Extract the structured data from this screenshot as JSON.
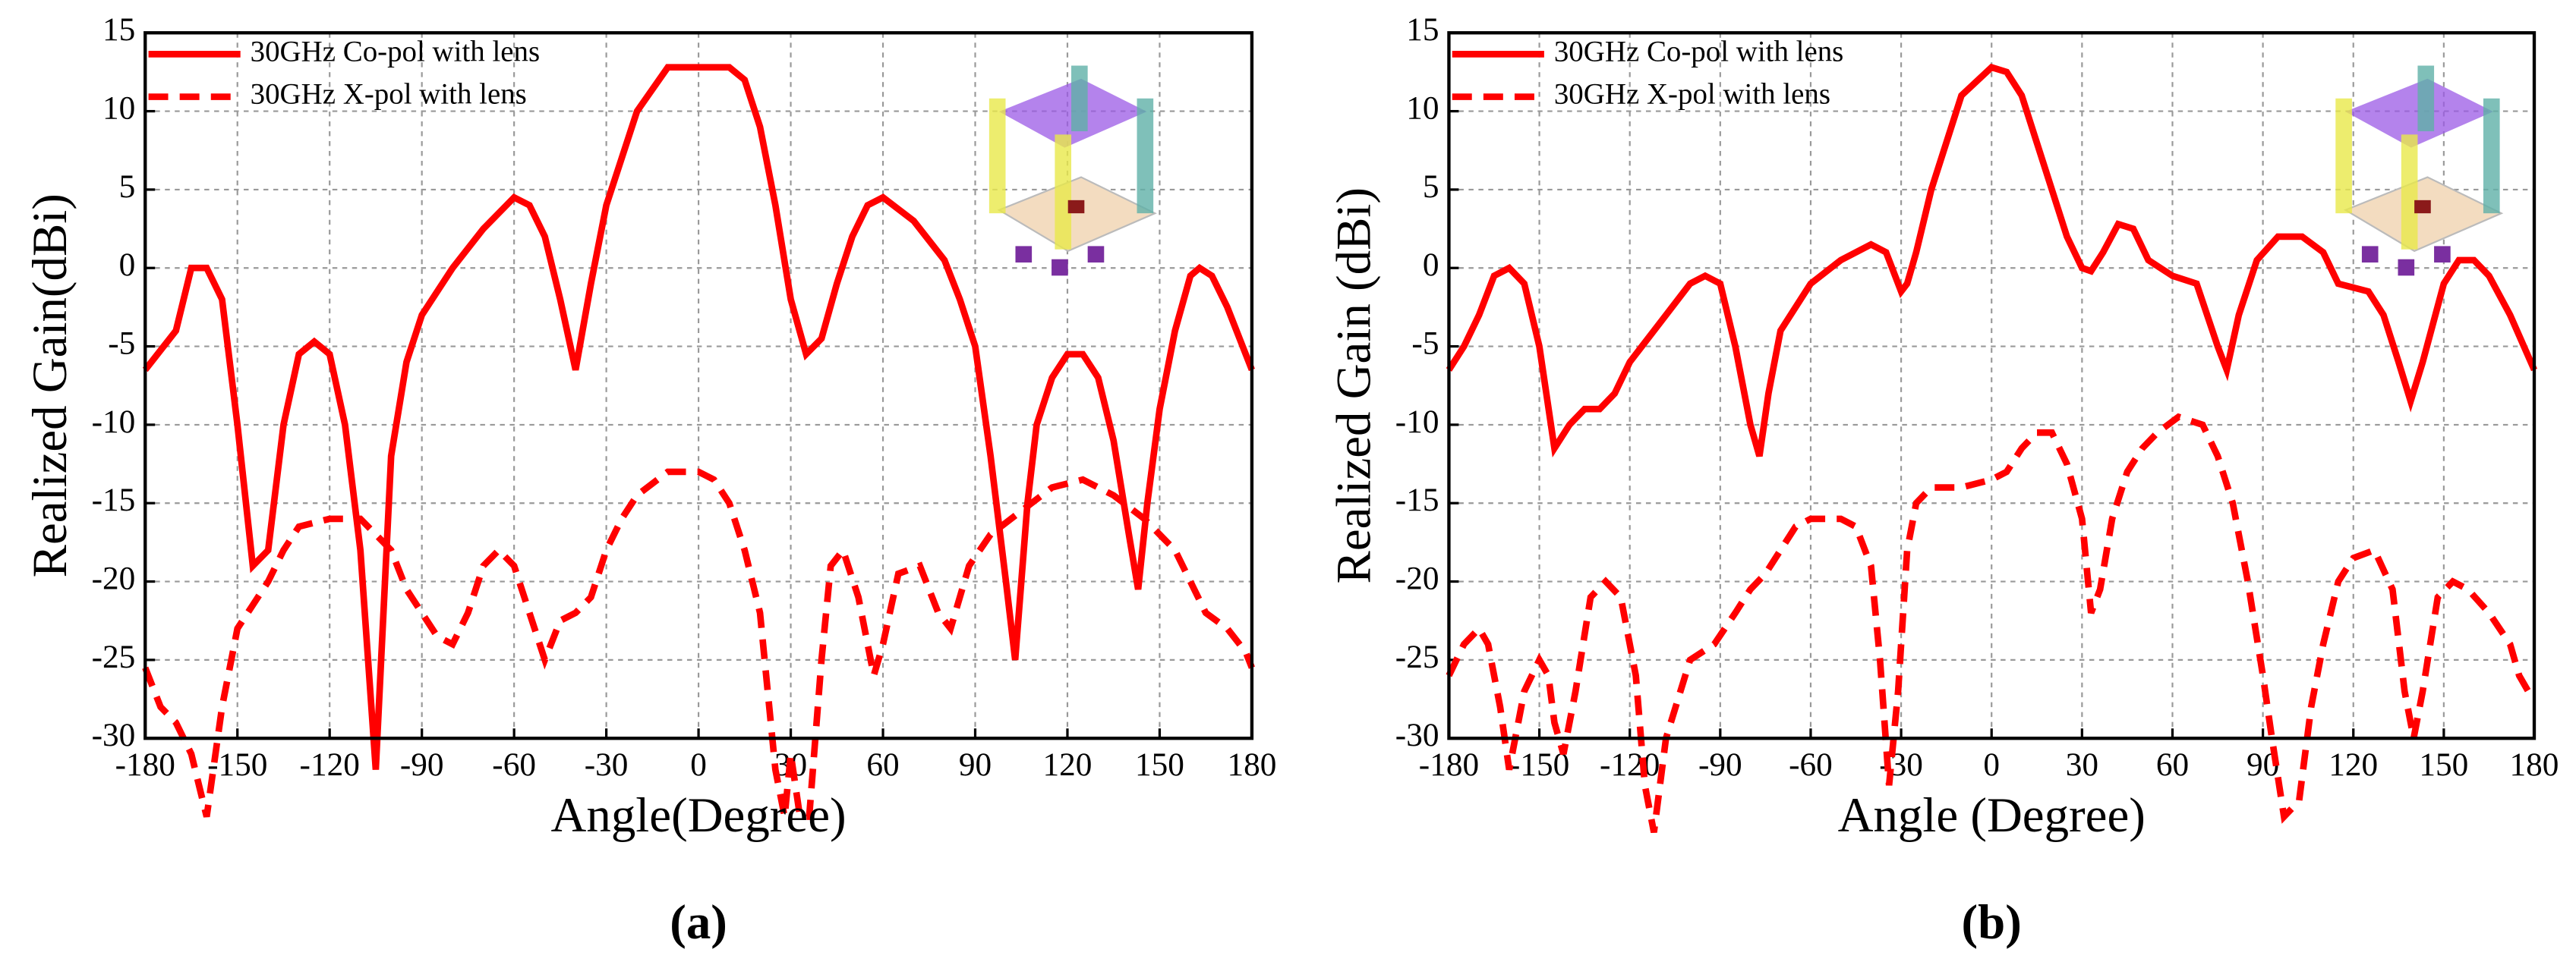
{
  "chart_data": [
    {
      "type": "line",
      "label": "(a)",
      "xlabel": "Angle(Degree)",
      "ylabel": "Realized Gain(dBi)",
      "xlim": [
        -180,
        180
      ],
      "ylim": [
        -30,
        15
      ],
      "xticks": [
        -180,
        -150,
        -120,
        -90,
        -60,
        -30,
        0,
        30,
        60,
        90,
        120,
        150,
        180
      ],
      "yticks": [
        -30,
        -25,
        -20,
        -15,
        -10,
        -5,
        0,
        5,
        10,
        15
      ],
      "grid": true,
      "legend": "upper left",
      "series": [
        {
          "name": "30GHz Co-pol with lens",
          "color": "#ff0000",
          "style": "solid",
          "x": [
            -180,
            -170,
            -165,
            -160,
            -155,
            -150,
            -145,
            -140,
            -135,
            -130,
            -125,
            -120,
            -115,
            -110,
            -105,
            -100,
            -95,
            -90,
            -80,
            -70,
            -60,
            -55,
            -50,
            -45,
            -40,
            -35,
            -30,
            -20,
            -10,
            0,
            10,
            15,
            20,
            25,
            30,
            35,
            40,
            45,
            50,
            55,
            60,
            70,
            80,
            85,
            90,
            95,
            100,
            103,
            107,
            110,
            115,
            120,
            125,
            130,
            135,
            140,
            143,
            146,
            150,
            155,
            160,
            163,
            167,
            172,
            180
          ],
          "values": [
            -6.5,
            -4,
            0,
            0,
            -2,
            -10,
            -19,
            -18,
            -10,
            -5.5,
            -4.7,
            -5.5,
            -10,
            -18,
            -32,
            -12,
            -6,
            -3,
            0,
            2.5,
            4.5,
            4,
            2,
            -2,
            -6.5,
            -1,
            4,
            10,
            12.8,
            12.8,
            12.8,
            12,
            9,
            4,
            -2,
            -5.5,
            -4.5,
            -1,
            2,
            4,
            4.5,
            3,
            0.5,
            -2,
            -5,
            -12,
            -20,
            -25,
            -15,
            -10,
            -7,
            -5.5,
            -5.5,
            -7,
            -11,
            -17,
            -20.5,
            -15,
            -9,
            -4,
            -0.5,
            0,
            -0.5,
            -2.5,
            -6.5
          ]
        },
        {
          "name": "30GHz X-pol with lens",
          "color": "#ff0000",
          "style": "dashed",
          "x": [
            -180,
            -175,
            -170,
            -165,
            -160,
            -155,
            -150,
            -145,
            -140,
            -135,
            -130,
            -120,
            -110,
            -100,
            -95,
            -90,
            -85,
            -80,
            -75,
            -70,
            -65,
            -60,
            -55,
            -50,
            -45,
            -40,
            -35,
            -30,
            -25,
            -20,
            -10,
            0,
            5,
            10,
            15,
            20,
            25,
            28,
            30,
            33,
            36,
            40,
            43,
            47,
            52,
            57,
            60,
            65,
            72,
            78,
            82,
            88,
            95,
            105,
            115,
            125,
            135,
            145,
            150,
            155,
            160,
            165,
            172,
            178,
            180
          ],
          "values": [
            -25.5,
            -28,
            -29,
            -31,
            -35,
            -28,
            -23,
            -21.5,
            -20,
            -18,
            -16.5,
            -16,
            -16,
            -18,
            -20.5,
            -22,
            -23.5,
            -24,
            -22,
            -19,
            -18,
            -19,
            -22,
            -25,
            -22.5,
            -22,
            -21,
            -18,
            -16,
            -14.5,
            -13,
            -13,
            -13.5,
            -15,
            -18,
            -22,
            -32,
            -35,
            -31,
            -35,
            -35,
            -25,
            -19,
            -18,
            -21,
            -26,
            -24,
            -19.5,
            -19,
            -22,
            -23,
            -19,
            -17,
            -15.5,
            -14,
            -13.5,
            -14.5,
            -16,
            -17,
            -18,
            -20,
            -22,
            -23,
            -24.5,
            -25.5
          ]
        }
      ]
    },
    {
      "type": "line",
      "label": "(b)",
      "xlabel": "Angle (Degree)",
      "ylabel": "Realized Gain (dBi)",
      "xlim": [
        -180,
        180
      ],
      "ylim": [
        -30,
        15
      ],
      "xticks": [
        -180,
        -150,
        -120,
        -90,
        -60,
        -30,
        0,
        30,
        60,
        90,
        120,
        150,
        180
      ],
      "yticks": [
        -30,
        -25,
        -20,
        -15,
        -10,
        -5,
        0,
        5,
        10,
        15
      ],
      "grid": true,
      "legend": "upper left",
      "series": [
        {
          "name": "30GHz Co-pol with lens",
          "color": "#ff0000",
          "style": "solid",
          "x": [
            -180,
            -175,
            -170,
            -165,
            -160,
            -155,
            -150,
            -145,
            -140,
            -135,
            -130,
            -125,
            -120,
            -110,
            -100,
            -95,
            -90,
            -85,
            -80,
            -77,
            -74,
            -70,
            -60,
            -50,
            -40,
            -35,
            -30,
            -28,
            -25,
            -20,
            -10,
            0,
            5,
            10,
            15,
            20,
            25,
            30,
            33,
            37,
            42,
            47,
            52,
            60,
            68,
            75,
            78,
            82,
            88,
            95,
            103,
            110,
            115,
            125,
            130,
            135,
            139,
            143,
            150,
            155,
            160,
            165,
            172,
            180
          ],
          "values": [
            -6.5,
            -5,
            -3,
            -0.5,
            0,
            -1,
            -5,
            -11.5,
            -10,
            -9,
            -9,
            -8,
            -6,
            -3.5,
            -1,
            -0.5,
            -1,
            -5,
            -10,
            -12,
            -8,
            -4,
            -1,
            0.5,
            1.5,
            1,
            -1.5,
            -1,
            1,
            5,
            11,
            12.8,
            12.5,
            11,
            8,
            5,
            2,
            0,
            -0.2,
            1,
            2.8,
            2.5,
            0.5,
            -0.5,
            -1,
            -5,
            -6.5,
            -3,
            0.5,
            2,
            2,
            1,
            -1,
            -1.5,
            -3,
            -6,
            -8.5,
            -6,
            -1,
            0.5,
            0.5,
            -0.5,
            -3,
            -6.5
          ]
        },
        {
          "name": "30GHz X-pol with lens",
          "color": "#ff0000",
          "style": "dashed",
          "x": [
            -180,
            -175,
            -170,
            -167,
            -163,
            -160,
            -155,
            -150,
            -147,
            -145,
            -142,
            -138,
            -133,
            -128,
            -123,
            -118,
            -115,
            -112,
            -108,
            -100,
            -92,
            -85,
            -80,
            -75,
            -70,
            -65,
            -60,
            -50,
            -45,
            -40,
            -37,
            -34,
            -31,
            -28,
            -25,
            -20,
            -10,
            0,
            5,
            10,
            15,
            20,
            25,
            30,
            33,
            36,
            40,
            45,
            50,
            55,
            62,
            70,
            75,
            80,
            85,
            90,
            93,
            97,
            102,
            106,
            110,
            115,
            120,
            127,
            133,
            137,
            140,
            143,
            148,
            153,
            158,
            165,
            172,
            175,
            178
          ],
          "values": [
            -26,
            -24,
            -23,
            -24,
            -28,
            -32,
            -27,
            -25,
            -26,
            -29,
            -31,
            -27,
            -21,
            -20,
            -21,
            -26,
            -33,
            -36,
            -30,
            -25,
            -24,
            -22,
            -20.5,
            -19.5,
            -18,
            -16.5,
            -16,
            -16,
            -16.5,
            -19,
            -25,
            -33,
            -27,
            -18,
            -15,
            -14,
            -14,
            -13.5,
            -13,
            -11.5,
            -10.5,
            -10.5,
            -12.5,
            -16,
            -22,
            -20.5,
            -16,
            -13,
            -11.5,
            -10.5,
            -9.5,
            -10,
            -12,
            -15,
            -20,
            -26,
            -30,
            -35,
            -34,
            -28,
            -24,
            -20,
            -18.5,
            -18,
            -20.5,
            -27,
            -30,
            -27,
            -21,
            -20,
            -20.5,
            -22,
            -24,
            -26,
            -27
          ]
        }
      ]
    }
  ]
}
